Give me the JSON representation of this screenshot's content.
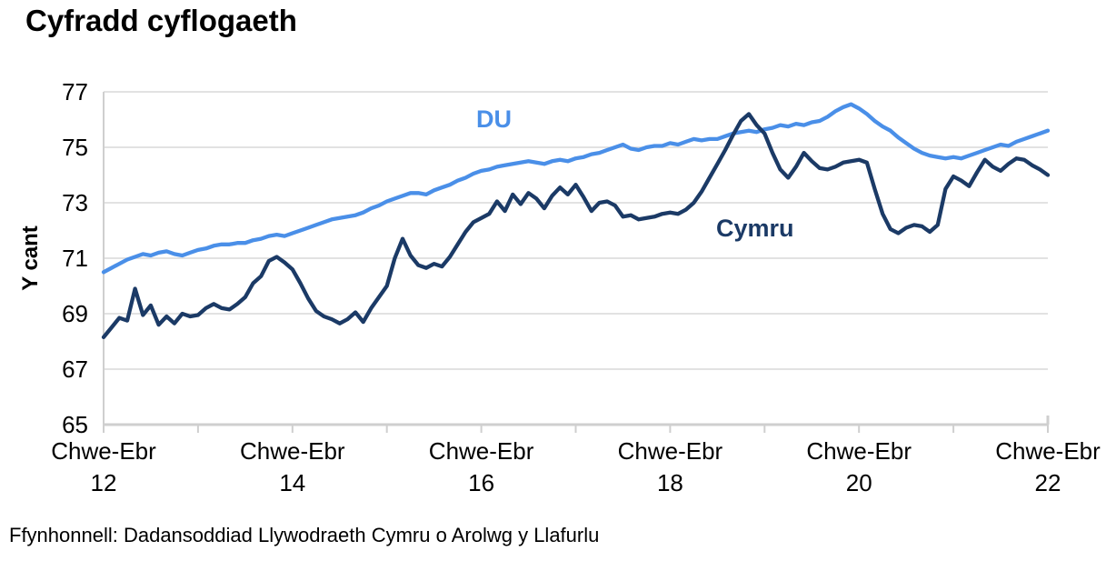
{
  "page": {
    "title": "Cyfradd cyflogaeth",
    "source": "Ffynhonnell: Dadansoddiad Llywodraeth Cymru o Arolwg y Llafurlu"
  },
  "chart_data": {
    "type": "line",
    "title": "Cyfradd cyflogaeth",
    "ylabel": "Y cant",
    "xlabel": "",
    "ylim": [
      65,
      77
    ],
    "y_ticks": [
      77,
      75,
      73,
      71,
      69,
      67,
      65
    ],
    "grid": "horizontal",
    "legend_position": "inline-labels",
    "x_period_start": "Chwe-Ebr 12",
    "x_period_end": "Chwe-Ebr 22",
    "points_per_year": 12,
    "x_tick_labels": [
      {
        "line1": "Chwe-Ebr",
        "line2": "12"
      },
      {
        "line1": "Chwe-Ebr",
        "line2": "14"
      },
      {
        "line1": "Chwe-Ebr",
        "line2": "16"
      },
      {
        "line1": "Chwe-Ebr",
        "line2": "18"
      },
      {
        "line1": "Chwe-Ebr",
        "line2": "20"
      },
      {
        "line1": "Chwe-Ebr",
        "line2": "22"
      }
    ],
    "colors": {
      "du_line": "#4a8fe8",
      "cymru_line": "#1b3a66",
      "gridline": "#d9d9d9",
      "axis": "#cfcfcf",
      "text": "#000000"
    },
    "series": [
      {
        "name": "DU",
        "color": "#4a8fe8",
        "values": [
          70.5,
          70.65,
          70.8,
          70.95,
          71.05,
          71.15,
          71.1,
          71.2,
          71.25,
          71.15,
          71.1,
          71.2,
          71.3,
          71.35,
          71.45,
          71.5,
          71.5,
          71.55,
          71.55,
          71.65,
          71.7,
          71.8,
          71.85,
          71.8,
          71.9,
          72.0,
          72.1,
          72.2,
          72.3,
          72.4,
          72.45,
          72.5,
          72.55,
          72.65,
          72.8,
          72.9,
          73.05,
          73.15,
          73.25,
          73.35,
          73.35,
          73.3,
          73.45,
          73.55,
          73.65,
          73.8,
          73.9,
          74.05,
          74.15,
          74.2,
          74.3,
          74.35,
          74.4,
          74.45,
          74.5,
          74.45,
          74.4,
          74.5,
          74.55,
          74.5,
          74.6,
          74.65,
          74.75,
          74.8,
          74.9,
          75.0,
          75.1,
          74.95,
          74.9,
          75.0,
          75.05,
          75.05,
          75.15,
          75.1,
          75.2,
          75.3,
          75.25,
          75.3,
          75.3,
          75.4,
          75.5,
          75.55,
          75.6,
          75.55,
          75.65,
          75.7,
          75.8,
          75.75,
          75.85,
          75.8,
          75.9,
          75.95,
          76.1,
          76.3,
          76.45,
          76.55,
          76.4,
          76.2,
          75.95,
          75.75,
          75.6,
          75.35,
          75.15,
          74.95,
          74.8,
          74.7,
          74.65,
          74.6,
          74.65,
          74.6,
          74.7,
          74.8,
          74.9,
          75.0,
          75.1,
          75.05,
          75.2,
          75.3,
          75.4,
          75.5,
          75.6
        ]
      },
      {
        "name": "Cymru",
        "color": "#1b3a66",
        "values": [
          68.15,
          68.5,
          68.85,
          68.75,
          69.9,
          68.95,
          69.3,
          68.6,
          68.9,
          68.65,
          69.0,
          68.9,
          68.95,
          69.2,
          69.35,
          69.2,
          69.15,
          69.35,
          69.6,
          70.1,
          70.35,
          70.9,
          71.05,
          70.85,
          70.6,
          70.1,
          69.55,
          69.1,
          68.9,
          68.8,
          68.65,
          68.8,
          69.05,
          68.7,
          69.2,
          69.6,
          70.0,
          71.0,
          71.7,
          71.1,
          70.75,
          70.65,
          70.8,
          70.7,
          71.05,
          71.5,
          71.95,
          72.3,
          72.45,
          72.6,
          73.05,
          72.7,
          73.3,
          72.95,
          73.35,
          73.15,
          72.8,
          73.25,
          73.55,
          73.3,
          73.65,
          73.2,
          72.7,
          73.0,
          73.05,
          72.9,
          72.5,
          72.55,
          72.4,
          72.45,
          72.5,
          72.6,
          72.65,
          72.6,
          72.75,
          73.0,
          73.4,
          73.9,
          74.4,
          74.9,
          75.45,
          75.95,
          76.2,
          75.8,
          75.5,
          74.8,
          74.2,
          73.9,
          74.3,
          74.8,
          74.5,
          74.25,
          74.2,
          74.3,
          74.45,
          74.5,
          74.55,
          74.45,
          73.5,
          72.6,
          72.05,
          71.9,
          72.1,
          72.2,
          72.15,
          71.95,
          72.2,
          73.5,
          73.95,
          73.8,
          73.6,
          74.1,
          74.55,
          74.3,
          74.15,
          74.4,
          74.6,
          74.55,
          74.35,
          74.2,
          74.0
        ]
      }
    ],
    "annotations": [
      {
        "text": "DU",
        "color": "#4a8fe8"
      },
      {
        "text": "Cymru",
        "color": "#1b3a66"
      }
    ]
  }
}
